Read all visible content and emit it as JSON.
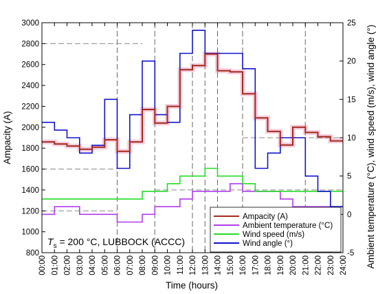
{
  "chart_data": {
    "type": "line",
    "step": true,
    "xlabel": "Time (hours)",
    "ylabel_left": "Ampacity (A)",
    "ylabel_right": "Ambient temperature (°C), wind speed (m/s), wind angle (°)",
    "ylim_left": [
      800,
      3000
    ],
    "ylim_right": [
      -5,
      25
    ],
    "xlim": [
      0,
      24
    ],
    "x_ticks": [
      "00:00",
      "01:00",
      "02:00",
      "03:00",
      "04:00",
      "05:00",
      "06:00",
      "07:00",
      "08:00",
      "09:00",
      "10:00",
      "11:00",
      "12:00",
      "13:00",
      "14:00",
      "15:00",
      "16:00",
      "17:00",
      "18:00",
      "19:00",
      "20:00",
      "21:00",
      "22:00",
      "23:00",
      "24:00"
    ],
    "y_ticks_left": [
      "800",
      "1000",
      "1200",
      "1400",
      "1600",
      "1800",
      "2000",
      "2200",
      "2400",
      "2600",
      "2800",
      "3000"
    ],
    "y_ticks_right": [
      "-5",
      "0",
      "5",
      "10",
      "15",
      "20",
      "25"
    ],
    "annotation": {
      "T": "T",
      "sub": "s",
      "rest": " = 200 °C, LUBBOCK (ACCC)"
    },
    "vlines_hours": [
      6,
      9,
      12,
      13,
      14,
      16,
      21
    ],
    "colors": {
      "ampacity": "#a32a1a",
      "ampacity_band": "#f6cde0",
      "ambient": "#b13af0",
      "wind_speed": "#22dd22",
      "wind_angle": "#1111cc",
      "ref_line": "#888888"
    },
    "series": [
      {
        "name": "Ampacity (A)",
        "axis": "left",
        "values": [
          1860,
          1840,
          1820,
          1790,
          1810,
          1880,
          1770,
          1860,
          2170,
          2040,
          2200,
          2550,
          2590,
          2700,
          2540,
          2530,
          2320,
          2090,
          1960,
          1830,
          2000,
          1950,
          1910,
          1870
        ]
      },
      {
        "name": "Ambient temperature (°C)",
        "axis": "right",
        "values": [
          0,
          1,
          1,
          0,
          0,
          0,
          -1,
          -1,
          0,
          1,
          1,
          2,
          3,
          3,
          3,
          4,
          3,
          3,
          3,
          2,
          1,
          1,
          1,
          1
        ]
      },
      {
        "name": "Wind speed (m/s)",
        "axis": "right",
        "values": [
          2,
          2,
          2,
          2,
          2,
          2,
          2,
          2,
          3,
          3,
          4,
          5,
          5,
          6,
          5,
          5,
          4,
          3,
          3,
          3,
          3,
          3,
          3,
          3
        ]
      },
      {
        "name": "Wind angle (°)",
        "axis": "right",
        "values": [
          12,
          11,
          10,
          8,
          9,
          15,
          6,
          13,
          20,
          13,
          12,
          21,
          24,
          21,
          21,
          21,
          19,
          6,
          8,
          10,
          10,
          5,
          3,
          1
        ]
      }
    ],
    "ref_lines": [
      {
        "axis": "left",
        "y": 2800,
        "x_from": 0,
        "x_to": 8
      },
      {
        "axis": "left",
        "y": 1600,
        "x_from": 0,
        "x_to": 6
      },
      {
        "axis": "left",
        "y": 1400,
        "x_from": 9,
        "x_to": 24
      },
      {
        "axis": "left",
        "y": 1200,
        "x_from": 0,
        "x_to": 6
      },
      {
        "axis": "right",
        "y": 10,
        "x_from": 16,
        "x_to": 24
      }
    ]
  }
}
